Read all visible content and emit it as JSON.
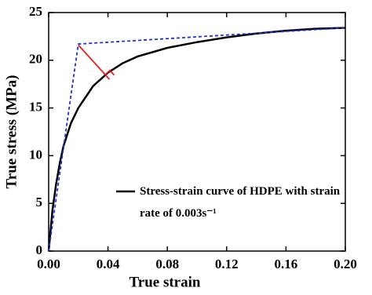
{
  "chart_data": {
    "type": "line",
    "x_label": "True strain",
    "y_label": "True stress (MPa)",
    "xlim": [
      0,
      0.2
    ],
    "ylim": [
      0,
      25
    ],
    "xticks": [
      {
        "value": 0,
        "label": "0.00"
      },
      0.04,
      0.08,
      0.12,
      0.16,
      {
        "value": 0.2,
        "label": "0.20"
      }
    ],
    "yticks": [
      0,
      5,
      10,
      15,
      20,
      25
    ],
    "series": [
      {
        "name": "Stress-strain curve of HDPE with strain rate of 0.003s⁻¹",
        "color": "#000000",
        "style": "solid",
        "x": [
          0,
          0.0025,
          0.005,
          0.0075,
          0.01,
          0.015,
          0.02,
          0.03,
          0.04,
          0.05,
          0.06,
          0.08,
          0.1,
          0.12,
          0.14,
          0.16,
          0.18,
          0.2
        ],
        "values": [
          0,
          4.2,
          7.0,
          9.2,
          11.0,
          13.4,
          15.0,
          17.3,
          18.7,
          19.7,
          20.4,
          21.3,
          21.9,
          22.4,
          22.8,
          23.1,
          23.3,
          23.4
        ]
      },
      {
        "color": "#2233cc",
        "style": "dashed",
        "x": [
          0,
          0.02,
          0.2
        ],
        "values": [
          0,
          21.7,
          23.4
        ]
      },
      {
        "color": "#e02020",
        "style": "solid",
        "x": [
          0.02,
          0.041
        ],
        "values": [
          21.6,
          18.0
        ]
      }
    ]
  }
}
